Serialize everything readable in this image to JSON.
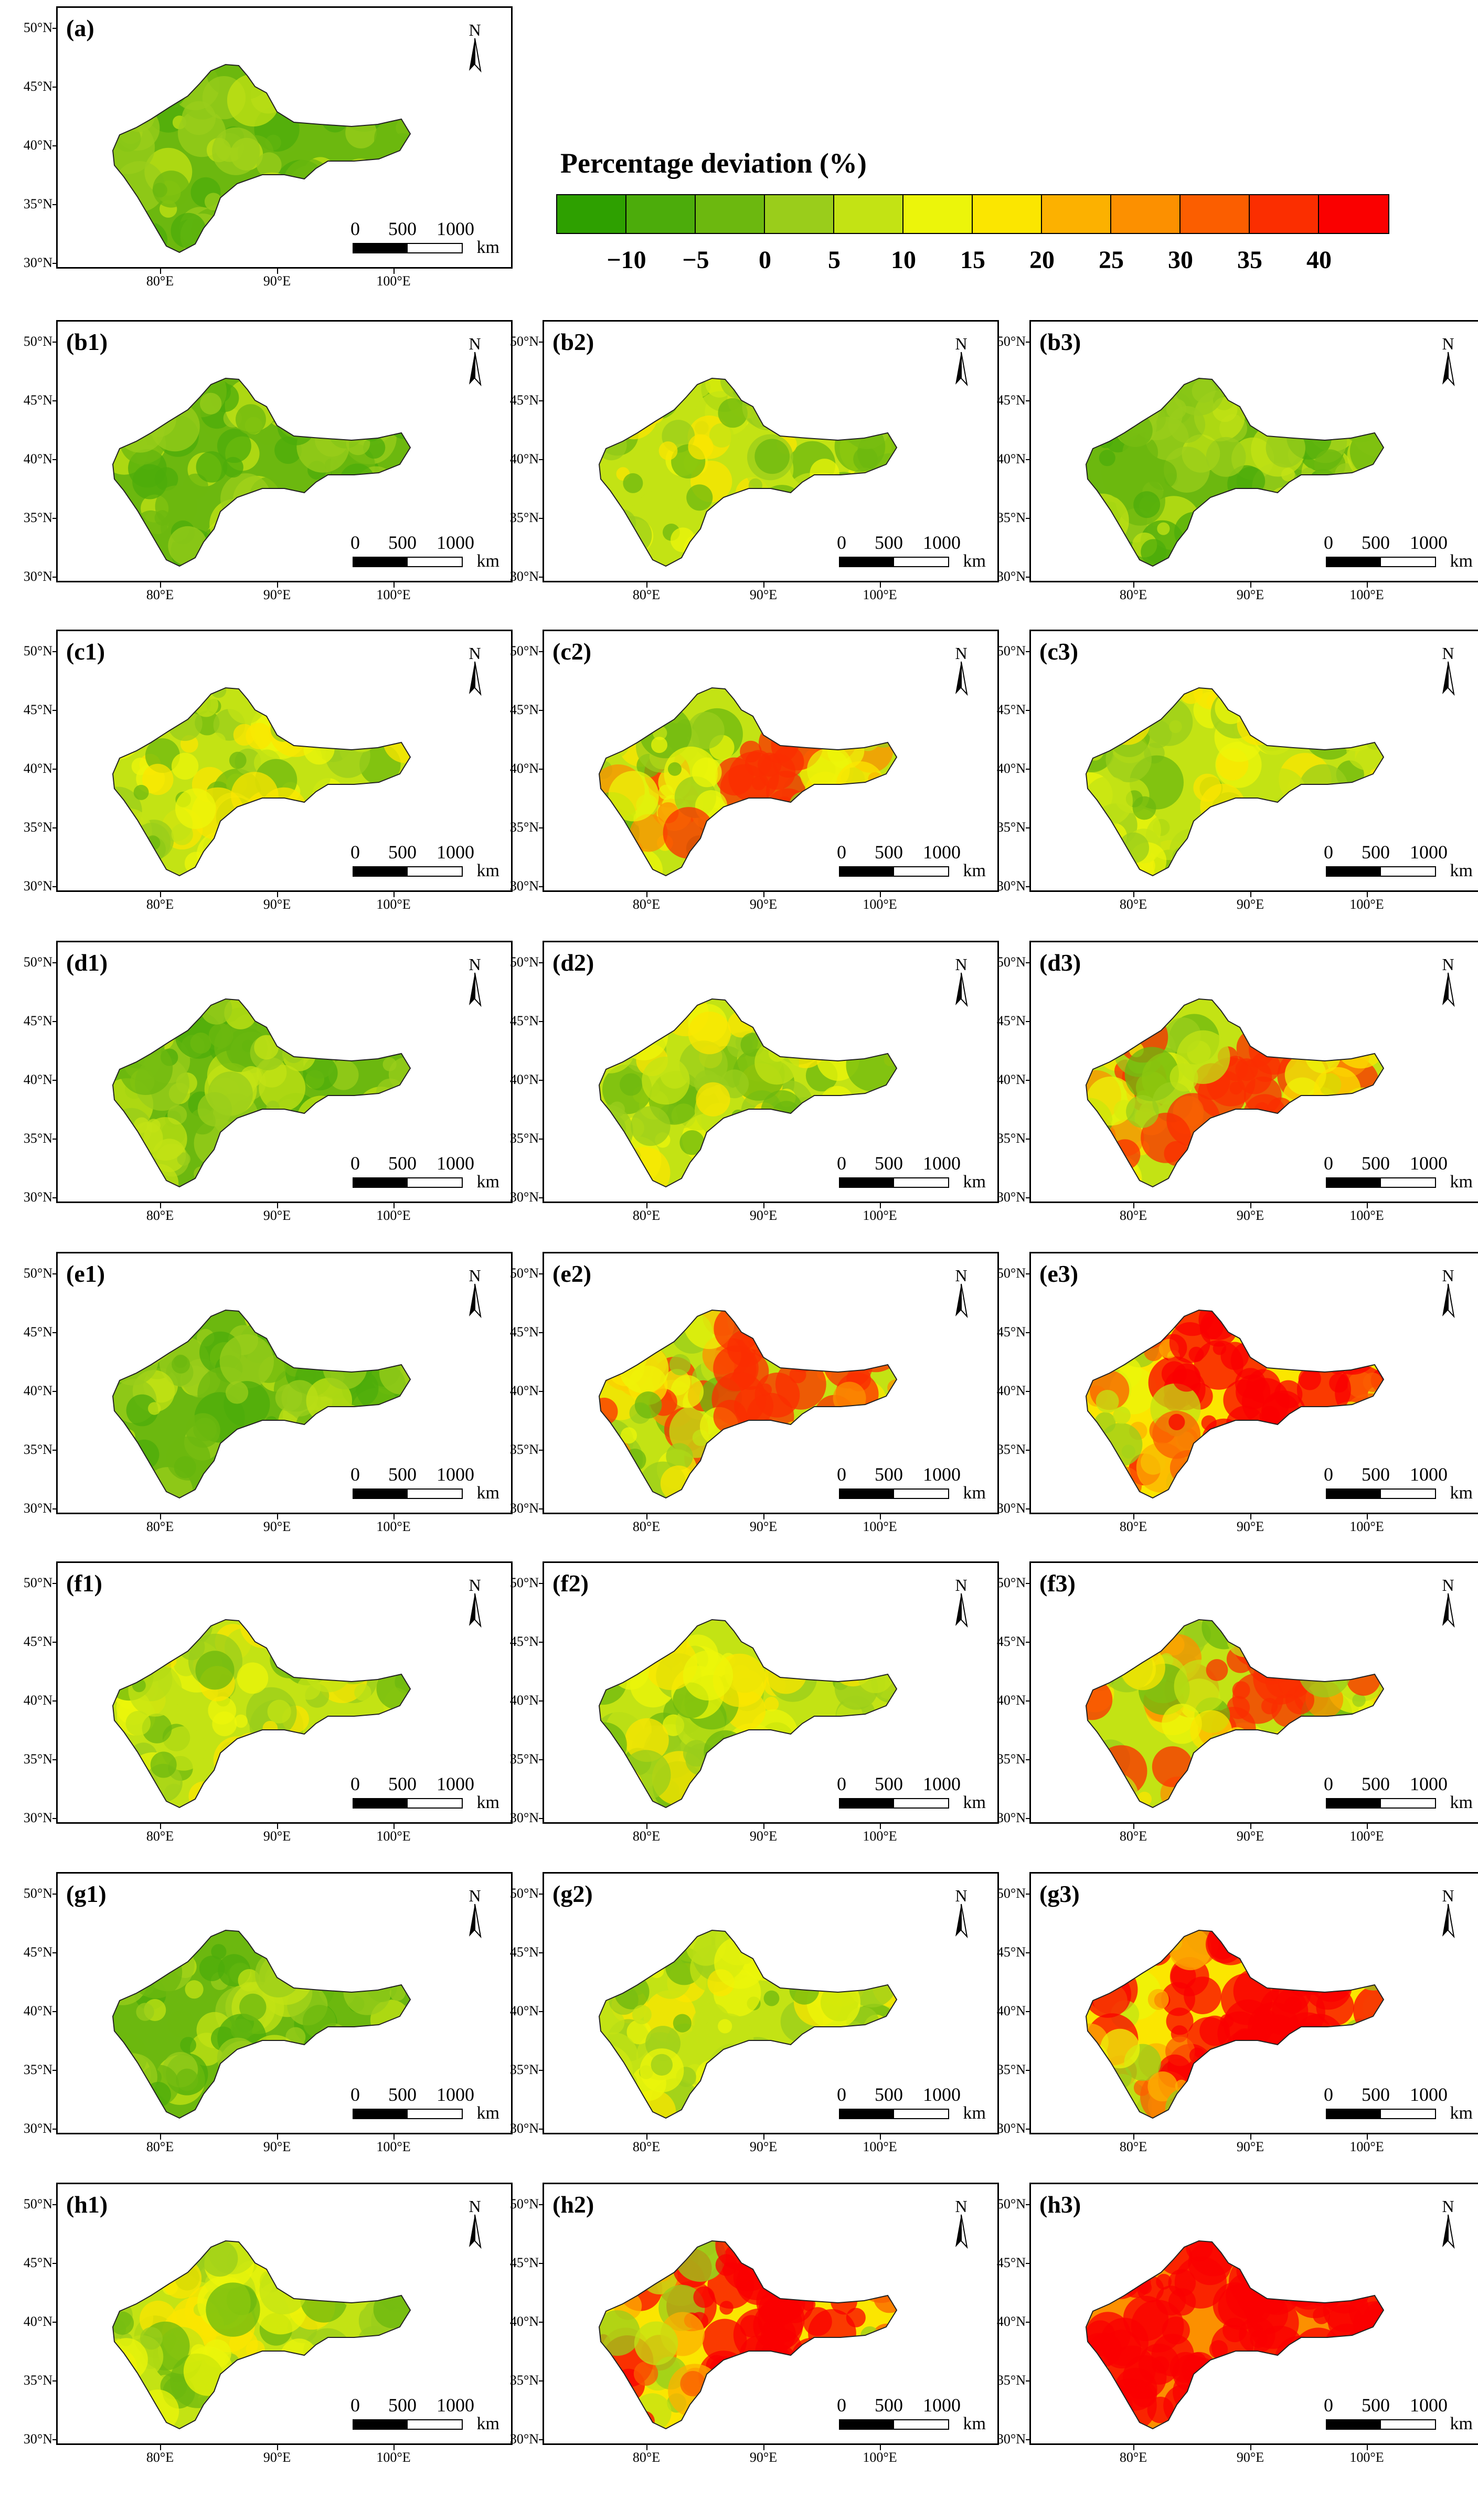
{
  "legend": {
    "title": "Percentage deviation (%)",
    "tick_labels": [
      "−10",
      "−5",
      "0",
      "5",
      "10",
      "15",
      "20",
      "25",
      "30",
      "35",
      "40"
    ],
    "colors": [
      "#2ea000",
      "#4cac0b",
      "#6cb80f",
      "#9acd1b",
      "#c3e314",
      "#ecf50a",
      "#fbe600",
      "#fcb100",
      "#fc9000",
      "#fb5e00",
      "#fb2e00",
      "#fa0000"
    ]
  },
  "map_common": {
    "lat_labels": [
      "50°N",
      "45°N",
      "40°N",
      "35°N",
      "30°N"
    ],
    "lon_labels": [
      "80°E",
      "90°E",
      "100°E"
    ],
    "north_label": "N",
    "scale_labels": [
      "0",
      "500",
      "1000"
    ],
    "scale_unit": "km"
  },
  "panels": [
    {
      "id": "a",
      "label": "(a)",
      "level": 0,
      "hot": "none"
    },
    {
      "id": "b1",
      "label": "(b1)",
      "level": 0,
      "hot": "none"
    },
    {
      "id": "b2",
      "label": "(b2)",
      "level": 1,
      "hot": "mild"
    },
    {
      "id": "b3",
      "label": "(b3)",
      "level": 0,
      "hot": "none"
    },
    {
      "id": "c1",
      "label": "(c1)",
      "level": 1,
      "hot": "mild"
    },
    {
      "id": "c2",
      "label": "(c2)",
      "level": 2,
      "hot": "center"
    },
    {
      "id": "c3",
      "label": "(c3)",
      "level": 1,
      "hot": "mild"
    },
    {
      "id": "d1",
      "label": "(d1)",
      "level": 0,
      "hot": "none"
    },
    {
      "id": "d2",
      "label": "(d2)",
      "level": 1,
      "hot": "mild"
    },
    {
      "id": "d3",
      "label": "(d3)",
      "level": 2,
      "hot": "center"
    },
    {
      "id": "e1",
      "label": "(e1)",
      "level": 0,
      "hot": "none"
    },
    {
      "id": "e2",
      "label": "(e2)",
      "level": 2,
      "hot": "center"
    },
    {
      "id": "e3",
      "label": "(e3)",
      "level": 3,
      "hot": "wide"
    },
    {
      "id": "f1",
      "label": "(f1)",
      "level": 1,
      "hot": "mild"
    },
    {
      "id": "f2",
      "label": "(f2)",
      "level": 1,
      "hot": "mild"
    },
    {
      "id": "f3",
      "label": "(f3)",
      "level": 2,
      "hot": "center"
    },
    {
      "id": "g1",
      "label": "(g1)",
      "level": 0,
      "hot": "none"
    },
    {
      "id": "g2",
      "label": "(g2)",
      "level": 1,
      "hot": "mild"
    },
    {
      "id": "g3",
      "label": "(g3)",
      "level": 3,
      "hot": "wide"
    },
    {
      "id": "h1",
      "label": "(h1)",
      "level": 1,
      "hot": "mild"
    },
    {
      "id": "h2",
      "label": "(h2)",
      "level": 3,
      "hot": "wide"
    },
    {
      "id": "h3",
      "label": "(h3)",
      "level": 4,
      "hot": "full"
    }
  ]
}
